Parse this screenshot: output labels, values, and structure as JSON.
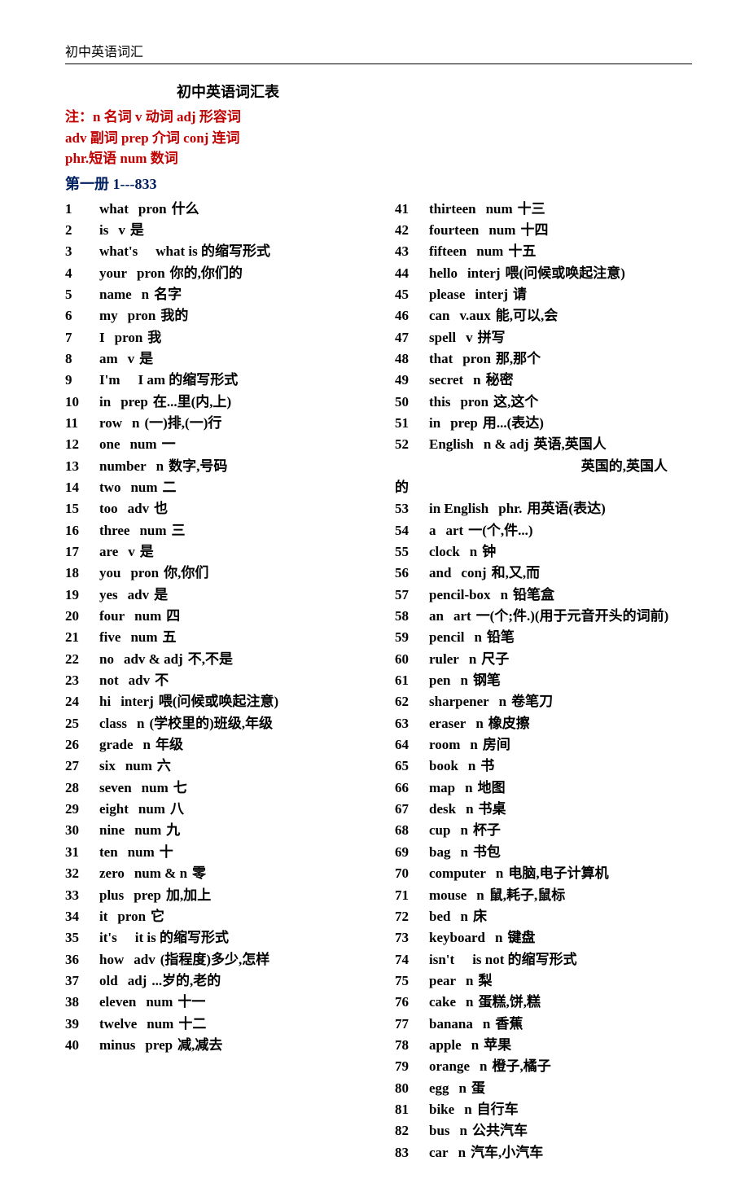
{
  "header": "初中英语词汇",
  "title": "初中英语词汇表",
  "legend_lines": [
    "注：n 名词    v 动词         adj 形容词",
    "adv 副词         prep 介词   conj 连词",
    "phr.短语        num 数词"
  ],
  "section": "第一册  1---833",
  "col1": [
    {
      "n": "1",
      "w": "what",
      "p": "pron",
      "d": "什么"
    },
    {
      "n": "2",
      "w": "is",
      "p": "v",
      "d": "是"
    },
    {
      "n": "3",
      "w": "what's",
      "p": "",
      "d": "what is 的缩写形式"
    },
    {
      "n": "4",
      "w": "your",
      "p": "pron",
      "d": "你的,你们的"
    },
    {
      "n": "5",
      "w": "name",
      "p": "n",
      "d": "名字"
    },
    {
      "n": "6",
      "w": "my",
      "p": "pron",
      "d": "我的"
    },
    {
      "n": "7",
      "w": "I",
      "p": "pron",
      "d": "我"
    },
    {
      "n": "8",
      "w": "am",
      "p": "v",
      "d": "是"
    },
    {
      "n": "9",
      "w": "I'm",
      "p": "",
      "d": "I am 的缩写形式"
    },
    {
      "n": "10",
      "w": "in",
      "p": "prep",
      "d": "在...里(内,上)"
    },
    {
      "n": "11",
      "w": "row",
      "p": "n",
      "d": "(一)排,(一)行"
    },
    {
      "n": "12",
      "w": "one",
      "p": "num",
      "d": "一"
    },
    {
      "n": "13",
      "w": "number",
      "p": "n",
      "d": "数字,号码"
    },
    {
      "n": "14",
      "w": "two",
      "p": "num",
      "d": "二"
    },
    {
      "n": "15",
      "w": "too",
      "p": "adv",
      "d": "也"
    },
    {
      "n": "16",
      "w": "three",
      "p": "num",
      "d": "三"
    },
    {
      "n": "17",
      "w": "are",
      "p": "v",
      "d": "是"
    },
    {
      "n": "18",
      "w": "you",
      "p": "pron",
      "d": "你,你们"
    },
    {
      "n": "19",
      "w": "yes",
      "p": "adv",
      "d": "是"
    },
    {
      "n": "20",
      "w": "four",
      "p": "num",
      "d": "四"
    },
    {
      "n": "21",
      "w": "five",
      "p": "num",
      "d": "五"
    },
    {
      "n": "22",
      "w": "no",
      "p": "adv & adj",
      "d": "不,不是"
    },
    {
      "n": "23",
      "w": "not",
      "p": "adv",
      "d": "不"
    },
    {
      "n": "24",
      "w": "hi",
      "p": "interj",
      "d": "喂(问候或唤起注意)"
    },
    {
      "n": "25",
      "w": "class",
      "p": "n",
      "d": "(学校里的)班级,年级"
    },
    {
      "n": "26",
      "w": "grade",
      "p": "n",
      "d": "年级"
    },
    {
      "n": "27",
      "w": "six",
      "p": "num",
      "d": "六"
    },
    {
      "n": "28",
      "w": "seven",
      "p": "num",
      "d": "七"
    },
    {
      "n": "29",
      "w": "eight",
      "p": "num",
      "d": "八"
    },
    {
      "n": "30",
      "w": "nine",
      "p": "num",
      "d": "九"
    },
    {
      "n": "31",
      "w": "ten",
      "p": "num",
      "d": "十"
    },
    {
      "n": "32",
      "w": "zero",
      "p": "num & n",
      "d": "零"
    },
    {
      "n": "33",
      "w": "plus",
      "p": "prep",
      "d": "加,加上"
    },
    {
      "n": "34",
      "w": "it",
      "p": "pron",
      "d": "它"
    },
    {
      "n": "35",
      "w": "it's",
      "p": "",
      "d": "it is 的缩写形式"
    },
    {
      "n": "36",
      "w": "how",
      "p": "adv",
      "d": "(指程度)多少,怎样"
    },
    {
      "n": "37",
      "w": "old",
      "p": "adj",
      "d": "...岁的,老的"
    },
    {
      "n": "38",
      "w": "eleven",
      "p": "num",
      "d": "十一"
    },
    {
      "n": "39",
      "w": "twelve",
      "p": "num",
      "d": "十二"
    },
    {
      "n": "40",
      "w": "minus",
      "p": "prep",
      "d": "减,减去"
    }
  ],
  "col2": [
    {
      "n": "41",
      "w": "thirteen",
      "p": "num",
      "d": "十三"
    },
    {
      "n": "42",
      "w": "fourteen",
      "p": "num",
      "d": "十四"
    },
    {
      "n": "43",
      "w": "fifteen",
      "p": "num",
      "d": "十五"
    },
    {
      "n": "44",
      "w": "hello",
      "p": "interj",
      "d": "喂(问候或唤起注意)"
    },
    {
      "n": "45",
      "w": "please",
      "p": "interj",
      "d": "请"
    },
    {
      "n": "46",
      "w": "can",
      "p": "v.aux",
      "d": "能,可以,会"
    },
    {
      "n": "47",
      "w": "spell",
      "p": "v",
      "d": "拼写"
    },
    {
      "n": "48",
      "w": "that",
      "p": "pron",
      "d": "那,那个"
    },
    {
      "n": "49",
      "w": "secret",
      "p": "n",
      "d": "秘密"
    },
    {
      "n": "50",
      "w": "this",
      "p": "pron",
      "d": "这,这个"
    },
    {
      "n": "51",
      "w": "in",
      "p": "prep",
      "d": "用...(表达)"
    },
    {
      "n": "52",
      "w": "English",
      "p": "n & adj",
      "d": "英语,英国人",
      "d2": "英国的,英国人",
      "d3": "的"
    },
    {
      "n": "53",
      "w": "in English",
      "p": "phr.",
      "d": "用英语(表达)"
    },
    {
      "n": "54",
      "w": "a",
      "p": "art",
      "d": "一(个,件...)"
    },
    {
      "n": "55",
      "w": "clock",
      "p": "n",
      "d": "钟"
    },
    {
      "n": "56",
      "w": "and",
      "p": "conj",
      "d": "和,又,而"
    },
    {
      "n": "57",
      "w": "pencil-box",
      "p": "n",
      "d": "铅笔盒"
    },
    {
      "n": "58",
      "w": "an",
      "p": "art",
      "d": "一(个;件.)(用于元音开头的词前)"
    },
    {
      "n": "59",
      "w": "pencil",
      "p": "n",
      "d": "铅笔"
    },
    {
      "n": "60",
      "w": "ruler",
      "p": "n",
      "d": "尺子"
    },
    {
      "n": "61",
      "w": "pen",
      "p": "n",
      "d": "钢笔"
    },
    {
      "n": "62",
      "w": "sharpener",
      "p": "n",
      "d": "卷笔刀"
    },
    {
      "n": "63",
      "w": "eraser",
      "p": "n",
      "d": "橡皮擦"
    },
    {
      "n": "64",
      "w": "room",
      "p": "n",
      "d": "房间"
    },
    {
      "n": "65",
      "w": "book",
      "p": "n",
      "d": "书"
    },
    {
      "n": "66",
      "w": "map",
      "p": "n",
      "d": "地图"
    },
    {
      "n": "67",
      "w": "desk",
      "p": "n",
      "d": "书桌"
    },
    {
      "n": "68",
      "w": "cup",
      "p": "n",
      "d": "杯子"
    },
    {
      "n": "69",
      "w": "bag",
      "p": "n",
      "d": "书包"
    },
    {
      "n": "70",
      "w": "computer",
      "p": "n",
      "d": "电脑,电子计算机"
    },
    {
      "n": "71",
      "w": "mouse",
      "p": "n",
      "d": "鼠,耗子,鼠标"
    },
    {
      "n": "72",
      "w": "bed",
      "p": "n",
      "d": "床"
    },
    {
      "n": "73",
      "w": "keyboard",
      "p": "n",
      "d": "键盘"
    },
    {
      "n": "74",
      "w": "isn't",
      "p": "",
      "d": "is not 的缩写形式"
    },
    {
      "n": "75",
      "w": "pear",
      "p": "n",
      "d": "梨"
    },
    {
      "n": "76",
      "w": "cake",
      "p": "n",
      "d": "蛋糕,饼,糕"
    },
    {
      "n": "77",
      "w": "banana",
      "p": "n",
      "d": "香蕉"
    },
    {
      "n": "78",
      "w": "apple",
      "p": "n",
      "d": "苹果"
    },
    {
      "n": "79",
      "w": "orange",
      "p": "n",
      "d": "橙子,橘子"
    },
    {
      "n": "80",
      "w": "egg",
      "p": "n",
      "d": "蛋"
    },
    {
      "n": "81",
      "w": "bike",
      "p": "n",
      "d": "自行车"
    },
    {
      "n": "82",
      "w": "bus",
      "p": "n",
      "d": "公共汽车"
    },
    {
      "n": "83",
      "w": "car",
      "p": "n",
      "d": "汽车,小汽车"
    }
  ]
}
